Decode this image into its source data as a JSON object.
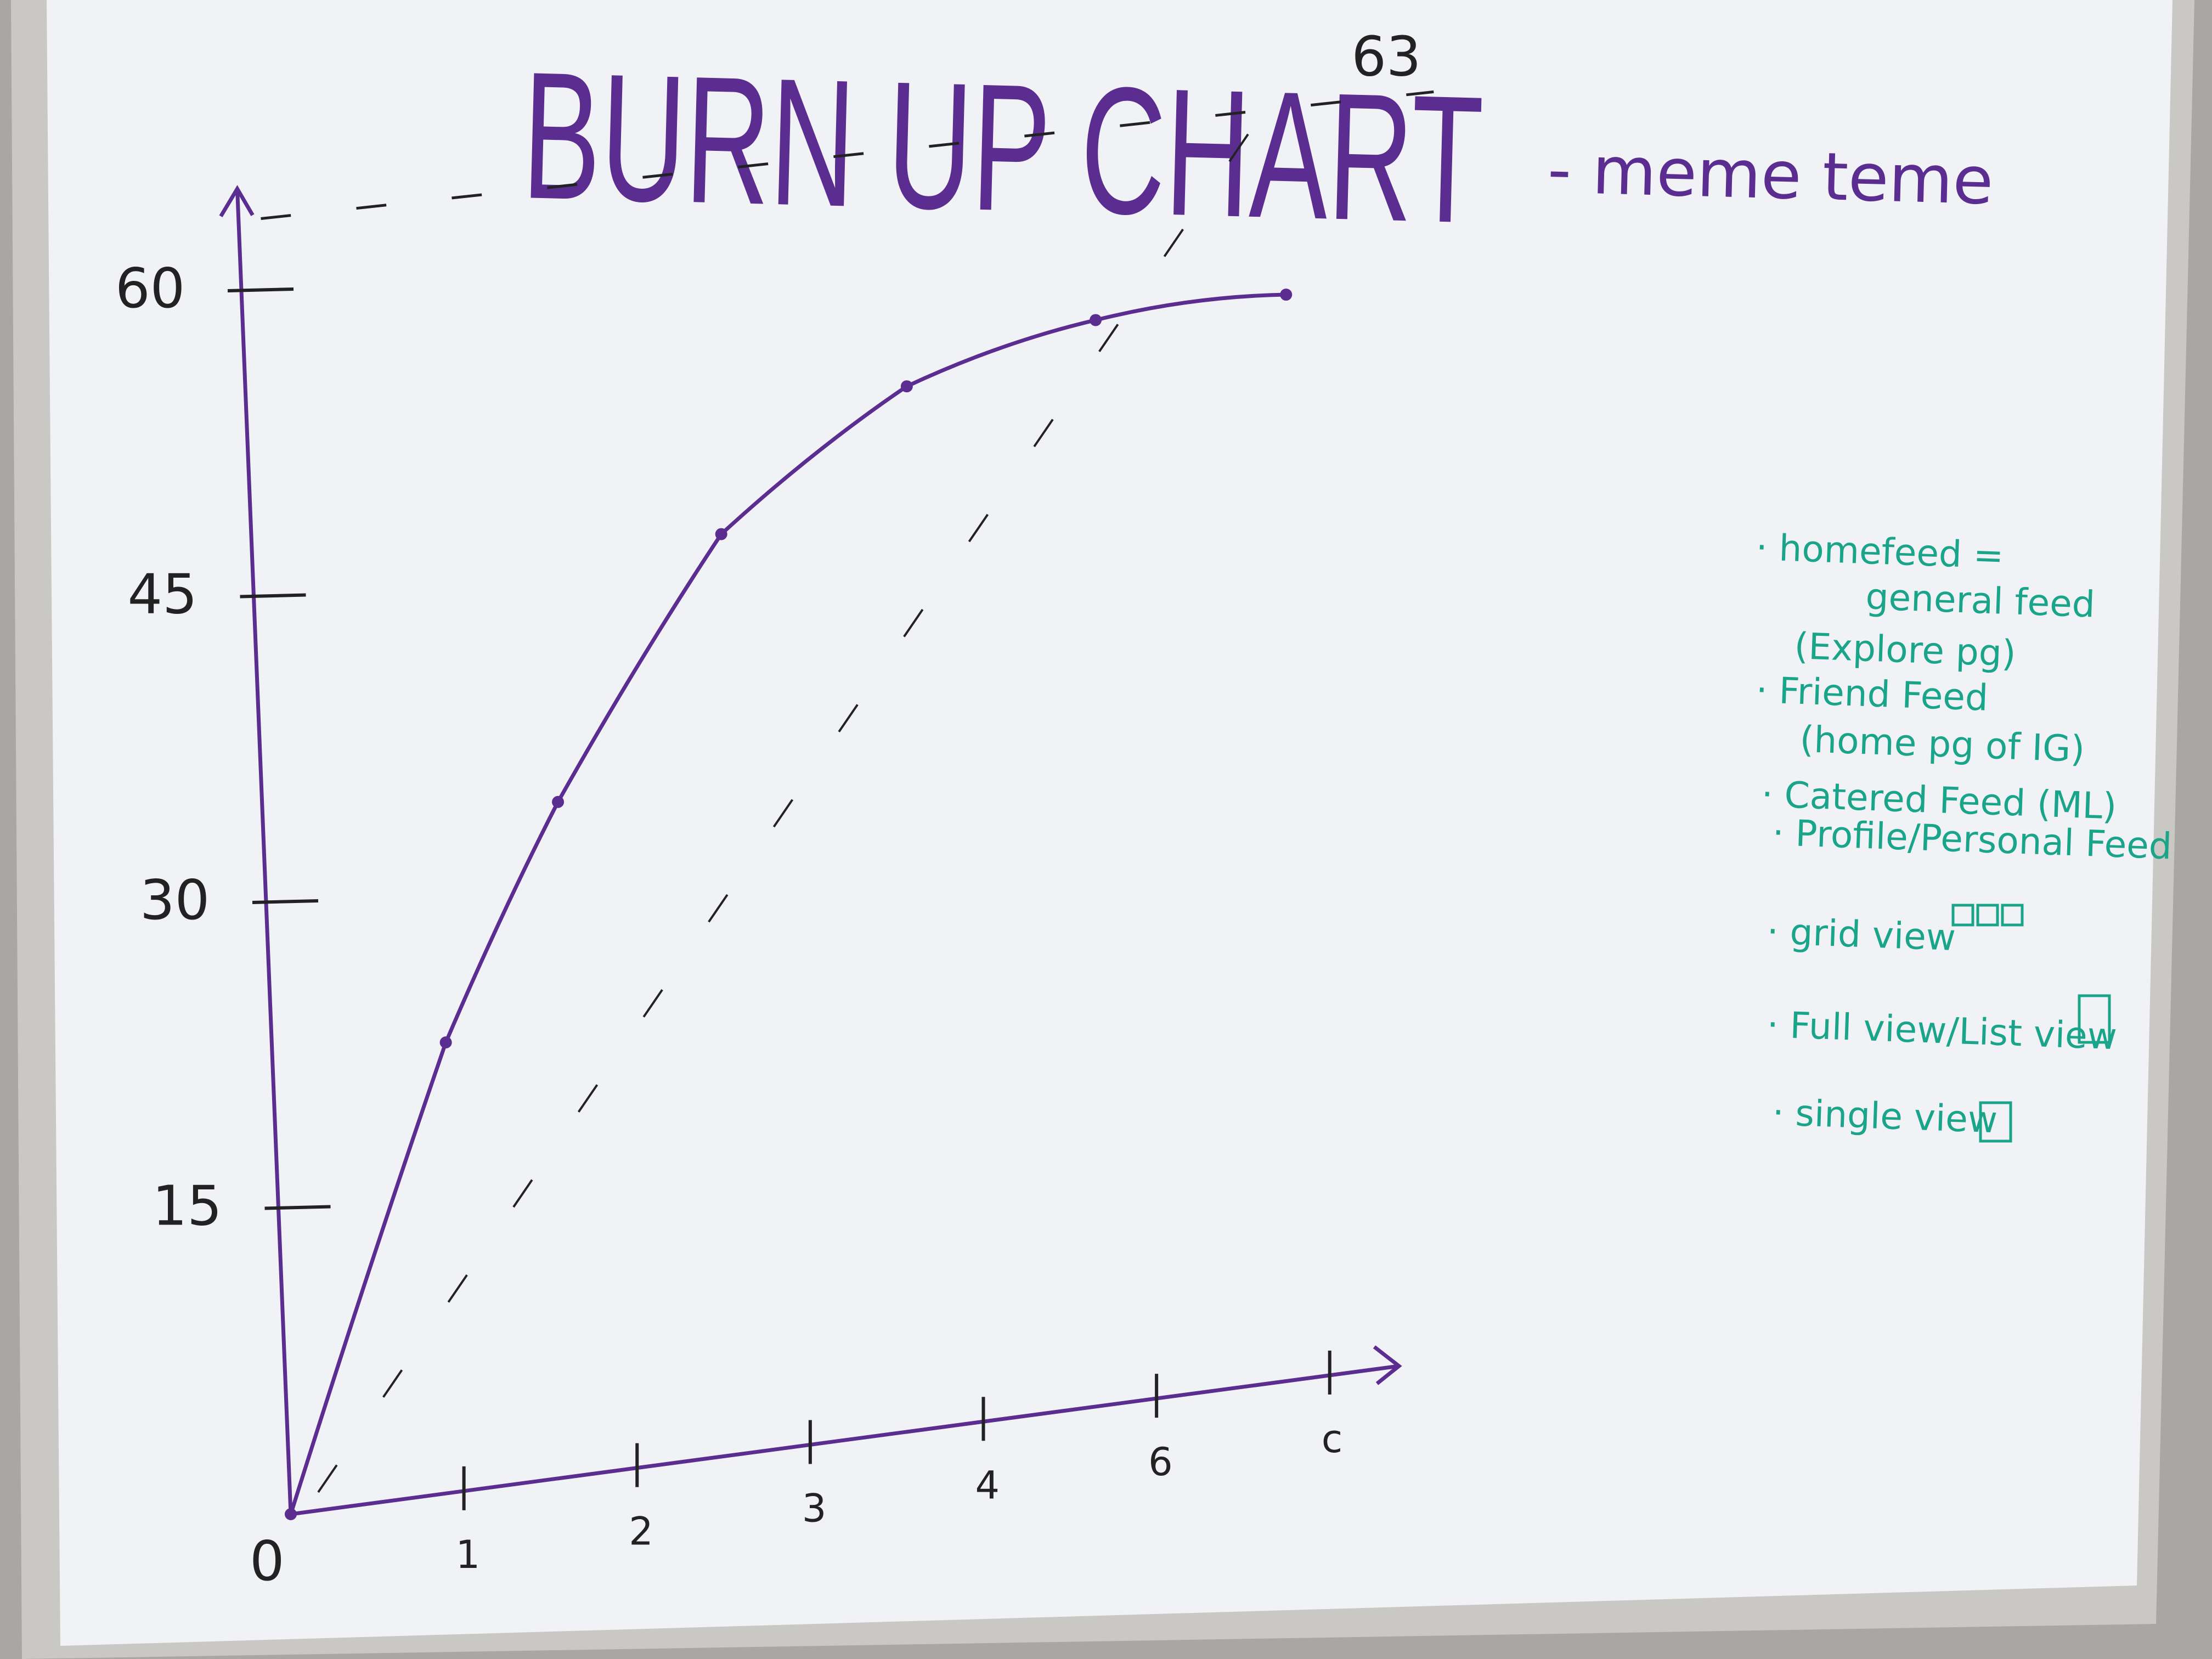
{
  "board": {
    "title": "BURN UP CHART",
    "team": "- meme teme",
    "marker_purple": "#5b2d91",
    "marker_black": "#222222",
    "marker_teal": "#1aa58a"
  },
  "chart_data": {
    "type": "line",
    "title": "BURN UP CHART",
    "y_ticks": [
      0,
      15,
      30,
      45,
      60
    ],
    "y_tick_labels": [
      "0",
      "15",
      "30",
      "45",
      "60"
    ],
    "x_ticks": [
      1,
      2,
      3,
      4,
      5,
      6
    ],
    "x_tick_labels": [
      "1",
      "2",
      "3",
      "4",
      "6",
      "c"
    ],
    "ylim": [
      0,
      65
    ],
    "xlim": [
      0,
      6.4
    ],
    "scope": {
      "value": 63,
      "label": "63"
    },
    "series": [
      {
        "x": [
          0,
          1,
          1.7,
          2.7,
          3.8,
          4.9,
          6.0
        ],
        "values": [
          0,
          22,
          33,
          45,
          51,
          53,
          53
        ]
      }
    ],
    "ideal_line": {
      "x": [
        0,
        6.0
      ],
      "values": [
        0,
        63
      ]
    },
    "grid": false
  },
  "notes": [
    {
      "text": "· homefeed ="
    },
    {
      "text": "general feed"
    },
    {
      "text": "(Explore pg)"
    },
    {
      "text": "· Friend Feed"
    },
    {
      "text": "(home pg of IG)"
    },
    {
      "text": "· Catered Feed (ML)"
    },
    {
      "text": "· Profile/Personal Feed"
    },
    {
      "text": "· grid view",
      "icon": "three-squares-icon"
    },
    {
      "text": "· Full view/List view",
      "icon": "tall-rectangle-icon"
    },
    {
      "text": "· single view",
      "icon": "square-icon"
    }
  ]
}
